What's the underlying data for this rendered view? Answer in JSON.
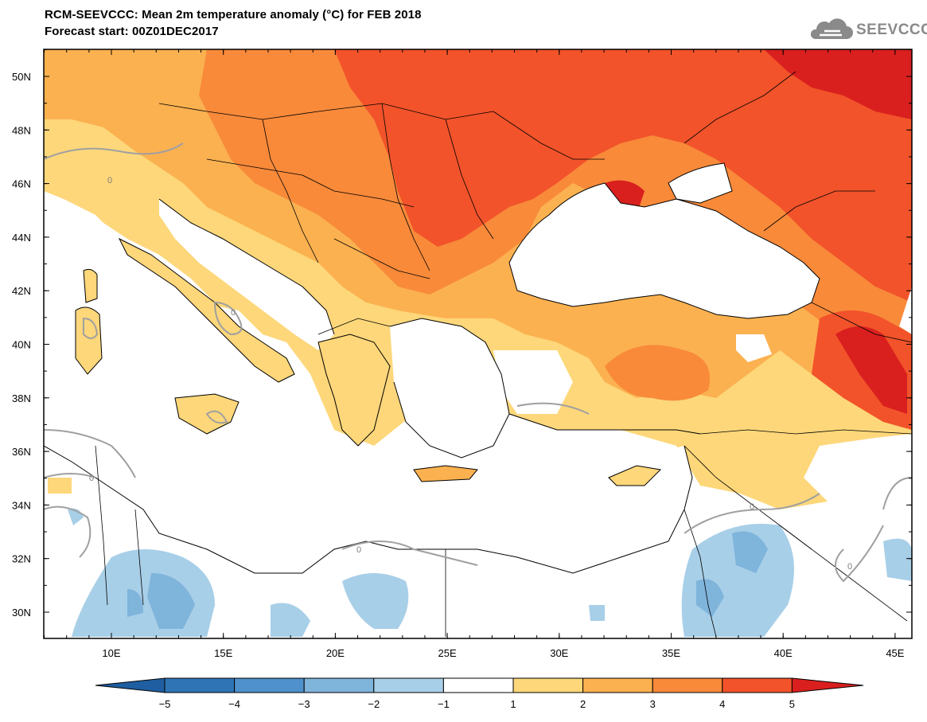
{
  "header": {
    "title": "RCM-SEEVCCC: Mean 2m temperature anomaly (°C) for FEB 2018",
    "subtitle": "Forecast start: 00Z01DEC2017"
  },
  "logo": {
    "text": "SEEVCCC",
    "icon": "cloud-icon"
  },
  "axes": {
    "lat_labels": [
      "50N",
      "48N",
      "46N",
      "44N",
      "42N",
      "40N",
      "38N",
      "36N",
      "34N",
      "32N",
      "30N"
    ],
    "lon_labels": [
      "10E",
      "15E",
      "20E",
      "25E",
      "30E",
      "35E",
      "40E",
      "45E"
    ]
  },
  "colorbar": {
    "labels": [
      "−5",
      "−4",
      "−3",
      "−2",
      "−1",
      "1",
      "2",
      "3",
      "4",
      "5"
    ],
    "colors": [
      "#1f5ea0",
      "#2f75b5",
      "#4f91cc",
      "#7fb4db",
      "#a8cfe8",
      "#ffffff",
      "#fdd77a",
      "#fbb150",
      "#f88a3a",
      "#f2532a",
      "#d9201e"
    ],
    "zero_contour_label": "0"
  },
  "contour_labels": [
    "0",
    "0",
    "0",
    "0",
    "0",
    "0"
  ]
}
